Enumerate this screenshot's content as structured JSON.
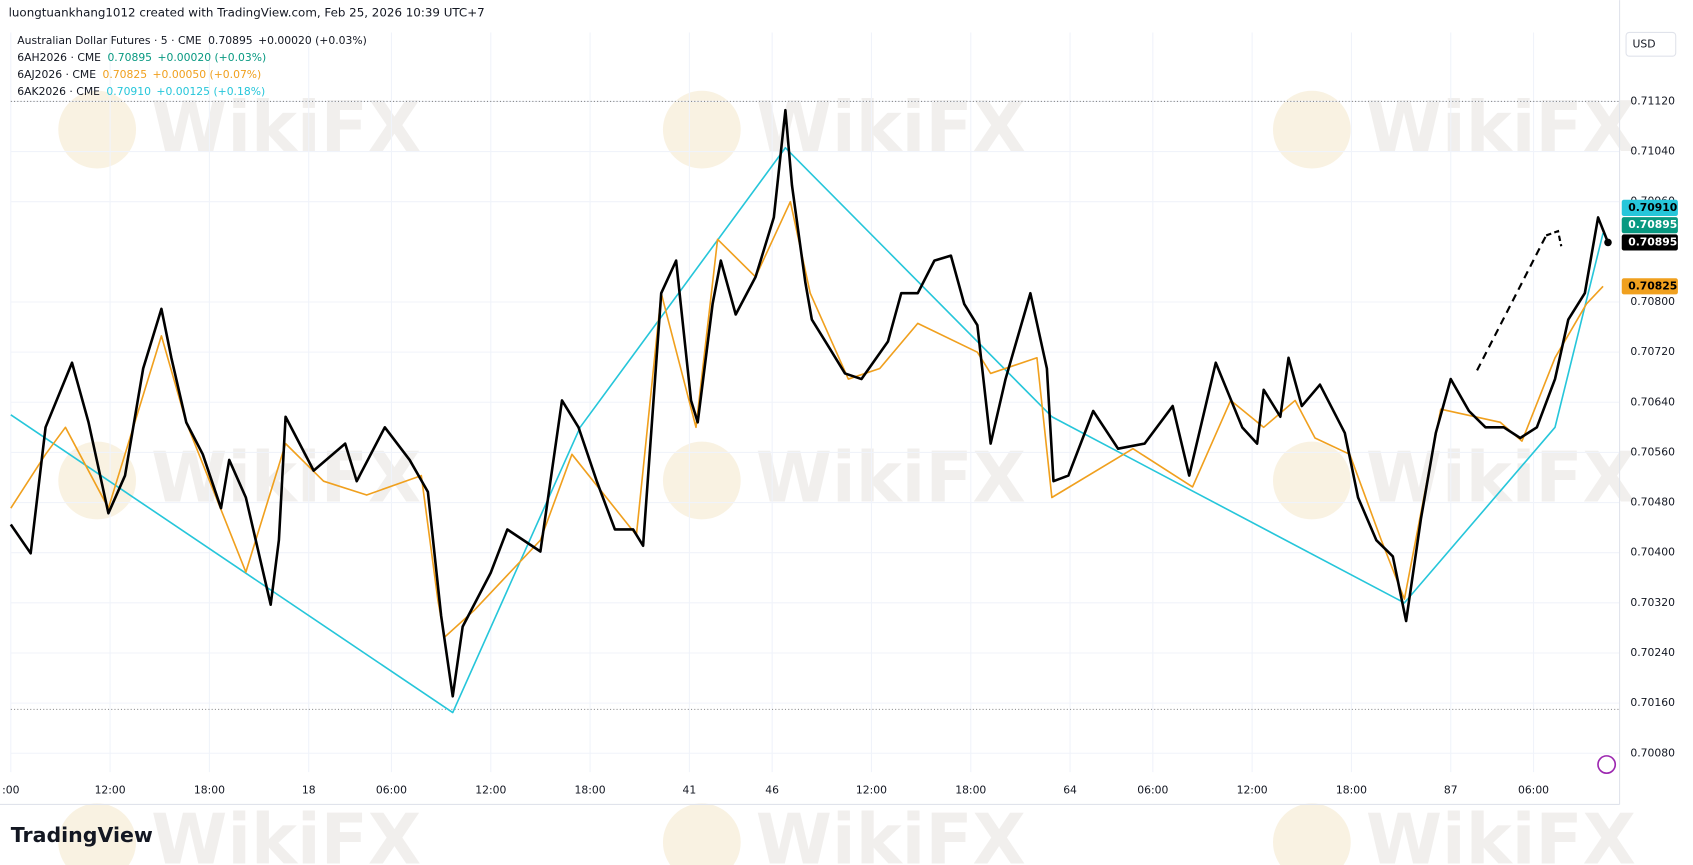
{
  "attribution": "luongtuankhang1012 created with TradingView.com, Feb 25, 2026 10:39 UTC+7",
  "currency": "USD",
  "brand": "TradingView",
  "watermark": "WikiFX",
  "chart_data": {
    "type": "line",
    "xlim": [
      0,
      97.2
    ],
    "ylim": [
      0.7005,
      0.7123
    ],
    "grid": true,
    "xticks": [
      {
        "value": 0,
        "label": ":00"
      },
      {
        "value": 6,
        "label": "12:00"
      },
      {
        "value": 12,
        "label": "18:00"
      },
      18,
      {
        "value": 23,
        "label": "06:00"
      },
      {
        "value": 29,
        "label": "12:00"
      },
      {
        "value": 35,
        "label": "18:00"
      },
      41,
      46,
      {
        "value": 52,
        "label": "12:00"
      },
      {
        "value": 58,
        "label": "18:00"
      },
      64,
      {
        "value": 69,
        "label": "06:00"
      },
      {
        "value": 75,
        "label": "12:00"
      },
      {
        "value": 81,
        "label": "18:00"
      },
      87,
      {
        "value": 92,
        "label": "06:00"
      }
    ],
    "yticks": [
      {
        "value": 0.7008,
        "label": "0.70080"
      },
      {
        "value": 0.7016,
        "label": "0.70160"
      },
      {
        "value": 0.7024,
        "label": "0.70240"
      },
      {
        "value": 0.7032,
        "label": "0.70320"
      },
      {
        "value": 0.704,
        "label": "0.70400"
      },
      {
        "value": 0.7048,
        "label": "0.70480"
      },
      {
        "value": 0.7056,
        "label": "0.70560"
      },
      {
        "value": 0.7064,
        "label": "0.70640"
      },
      {
        "value": 0.7072,
        "label": "0.70720"
      },
      {
        "value": 0.708,
        "label": "0.70800"
      },
      {
        "value": 0.7096,
        "label": "0.70960"
      },
      {
        "value": 0.7104,
        "label": "0.71040"
      },
      {
        "value": 0.7112,
        "label": "0.71120"
      }
    ],
    "hlines": [
      0.7112,
      0.7015
    ],
    "series": [
      {
        "name": "Australian Dollar Futures · 5 · CME",
        "color": "#000000",
        "last_value": 0.70895,
        "last_label": "0.70895",
        "change_label": "+0.00020 (+0.03%)",
        "x": [
          0,
          1.2,
          2.1,
          3.7,
          4.7,
          5.9,
          6.9,
          8.0,
          9.1,
          9.7,
          10.6,
          11.6,
          12.7,
          13.2,
          14.2,
          15.7,
          16.2,
          16.6,
          18.3,
          20.2,
          20.9,
          22.6,
          24.1,
          25.2,
          26.0,
          26.7,
          27.3,
          29.0,
          30.0,
          32.0,
          33.3,
          34.3,
          35.4,
          36.5,
          37.6,
          38.2,
          39.3,
          40.2,
          41.1,
          41.5,
          42.4,
          42.9,
          43.8,
          45.0,
          46.1,
          46.8,
          47.2,
          48.0,
          48.4,
          49.4,
          50.4,
          51.4,
          53.0,
          53.8,
          54.8,
          55.8,
          56.8,
          57.6,
          58.4,
          59.2,
          60.1,
          61.6,
          62.6,
          63.0,
          63.9,
          65.4,
          66.9,
          68.5,
          70.2,
          71.2,
          72.8,
          74.4,
          75.3,
          75.7,
          76.7,
          77.2,
          78.0,
          79.1,
          80.6,
          81.4,
          82.5,
          83.5,
          84.3,
          85.2,
          86.1,
          87.0,
          88.1,
          89.1,
          90.2,
          91.2,
          92.2,
          93.3,
          94.1,
          95.1,
          95.9,
          96.5
        ],
        "values": [
          0.70445,
          0.70399,
          0.706,
          0.70703,
          0.70608,
          0.70463,
          0.70523,
          0.70694,
          0.70789,
          0.70711,
          0.70608,
          0.70557,
          0.70471,
          0.70548,
          0.70488,
          0.70317,
          0.7042,
          0.70617,
          0.70531,
          0.70574,
          0.70514,
          0.706,
          0.70548,
          0.70497,
          0.70299,
          0.70171,
          0.70282,
          0.70368,
          0.70437,
          0.70402,
          0.70643,
          0.706,
          0.70514,
          0.70437,
          0.70437,
          0.70411,
          0.70814,
          0.70866,
          0.70643,
          0.70608,
          0.70797,
          0.70866,
          0.7078,
          0.7084,
          0.70935,
          0.71106,
          0.70986,
          0.70832,
          0.70772,
          0.70729,
          0.70686,
          0.70677,
          0.70737,
          0.70814,
          0.70814,
          0.70866,
          0.70874,
          0.70797,
          0.70763,
          0.70574,
          0.70677,
          0.70814,
          0.70694,
          0.70514,
          0.70523,
          0.70626,
          0.70566,
          0.70574,
          0.70634,
          0.70523,
          0.70703,
          0.706,
          0.70574,
          0.7066,
          0.70617,
          0.70711,
          0.70634,
          0.70668,
          0.70591,
          0.70488,
          0.7042,
          0.70394,
          0.70291,
          0.70454,
          0.70591,
          0.70677,
          0.70626,
          0.706,
          0.706,
          0.70583,
          0.706,
          0.70677,
          0.70772,
          0.70814,
          0.70935,
          0.70895
        ]
      },
      {
        "name": "6AH2026 · CME",
        "color": "#089981",
        "last_value": 0.70895,
        "last_label": "0.70895",
        "change_label": "+0.00020 (+0.03%)",
        "x": [],
        "values": []
      },
      {
        "name": "6AJ2026 · CME",
        "color": "#f0a01e",
        "last_value": 0.70825,
        "last_label": "0.70825",
        "change_label": "+0.00050 (+0.07%)",
        "x": [
          0,
          2.1,
          3.3,
          5.9,
          9.1,
          10.6,
          14.2,
          16.6,
          18.9,
          21.5,
          24.8,
          25.8,
          26.2,
          28.0,
          32.0,
          33.9,
          37.8,
          39.3,
          41.4,
          42.7,
          45.0,
          47.1,
          48.3,
          50.6,
          52.5,
          54.8,
          58.4,
          59.2,
          62.0,
          62.9,
          67.8,
          71.4,
          73.7,
          75.7,
          77.6,
          78.8,
          80.9,
          82.8,
          84.2,
          86.4,
          90.0,
          91.3,
          93.3,
          95.2,
          96.2
        ],
        "values": [
          0.70471,
          0.70557,
          0.706,
          0.70471,
          0.70746,
          0.70608,
          0.70369,
          0.70574,
          0.70514,
          0.70492,
          0.70523,
          0.70325,
          0.70265,
          0.70308,
          0.7042,
          0.70557,
          0.70428,
          0.70814,
          0.706,
          0.709,
          0.7084,
          0.7096,
          0.70814,
          0.70677,
          0.70694,
          0.70766,
          0.7072,
          0.70686,
          0.70711,
          0.70488,
          0.70566,
          0.70505,
          0.70643,
          0.706,
          0.70643,
          0.70583,
          0.70557,
          0.7042,
          0.70326,
          0.70629,
          0.70608,
          0.70578,
          0.70711,
          0.70797,
          0.70825
        ]
      },
      {
        "name": "6AK2026 · CME",
        "color": "#26c6da",
        "last_value": 0.7091,
        "last_label": "0.70910",
        "change_label": "+0.00125 (+0.18%)",
        "x": [
          0,
          26.7,
          34.4,
          46.8,
          62.9,
          84.2,
          93.3,
          96.2
        ],
        "values": [
          0.7062,
          0.70145,
          0.706,
          0.71046,
          0.70617,
          0.7032,
          0.706,
          0.7091
        ]
      }
    ]
  }
}
